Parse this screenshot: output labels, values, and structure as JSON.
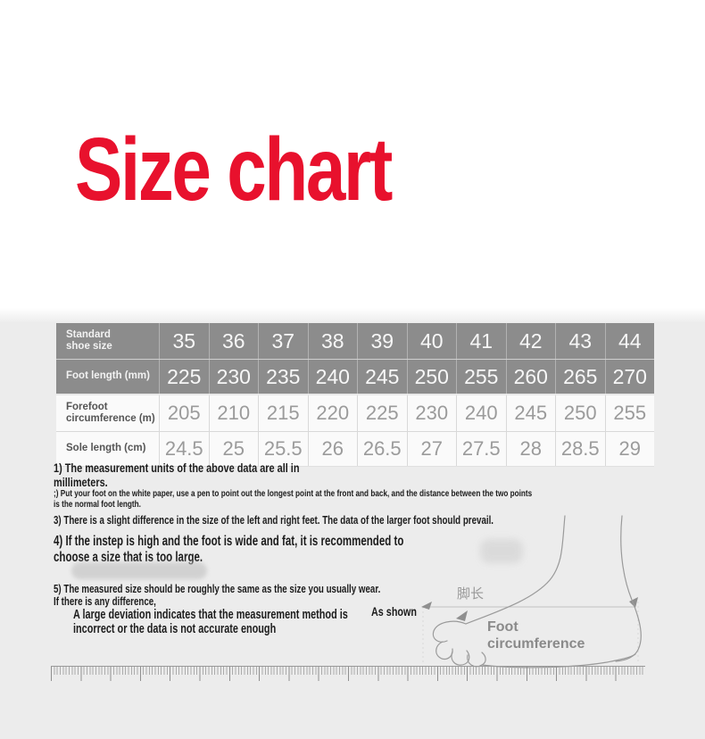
{
  "title": {
    "text": "Size chart",
    "color": "#e8112d"
  },
  "size_table": {
    "rows": [
      {
        "label": "Standard\nshoe size",
        "values": [
          "35",
          "36",
          "37",
          "38",
          "39",
          "40",
          "41",
          "42",
          "43",
          "44"
        ]
      },
      {
        "label": "Foot length (mm)",
        "values": [
          "225",
          "230",
          "235",
          "240",
          "245",
          "250",
          "255",
          "260",
          "265",
          "270"
        ]
      },
      {
        "label": "Forefoot\ncircumference (m)",
        "values": [
          "205",
          "210",
          "215",
          "220",
          "225",
          "230",
          "240",
          "245",
          "250",
          "255"
        ]
      },
      {
        "label": "Sole length (cm)",
        "values": [
          "24.5",
          "25",
          "25.5",
          "26",
          "26.5",
          "27",
          "27.5",
          "28",
          "28.5",
          "29"
        ]
      }
    ]
  },
  "chart_data": {
    "type": "table",
    "title": "Size chart",
    "row_headers": [
      "Standard shoe size",
      "Foot length (mm)",
      "Forefoot circumference (m)",
      "Sole length (cm)"
    ],
    "rows": [
      [
        35,
        36,
        37,
        38,
        39,
        40,
        41,
        42,
        43,
        44
      ],
      [
        225,
        230,
        235,
        240,
        245,
        250,
        255,
        260,
        265,
        270
      ],
      [
        205,
        210,
        215,
        220,
        225,
        230,
        240,
        245,
        250,
        255
      ],
      [
        24.5,
        25,
        25.5,
        26,
        26.5,
        27,
        27.5,
        28,
        28.5,
        29
      ]
    ]
  },
  "notes": {
    "n1": "1) The measurement units of the above data are all in\nmillimeters.",
    "n2": ";) Put your foot on the white paper, use a pen to point out the longest point at the front and back, and the distance between the two points\nis the normal foot length.",
    "n3": "3) There is a slight difference in the size of the left and right feet. The data of the larger foot should prevail.",
    "n4": "4) If the instep is high and the foot is wide and fat, it is recommended to\nchoose a size that is too large.",
    "n5": "5) The measured size should be roughly the same as the size you usually wear.\nIf there is any difference,",
    "n5b": "A large deviation indicates that the measurement method is\nincorrect or the data is not accurate enough",
    "as_shown": "As shown"
  },
  "diagram": {
    "foot_length_label": "脚长",
    "foot_circumference_line1": "Foot",
    "foot_circumference_line2": "circumference"
  }
}
